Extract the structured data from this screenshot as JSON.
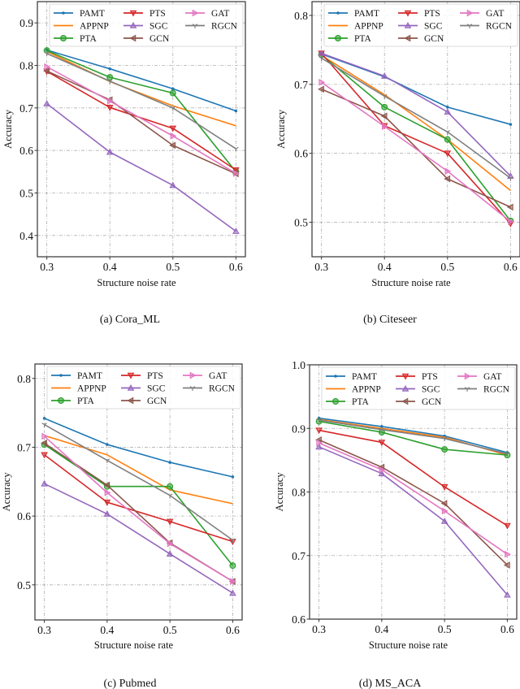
{
  "series_names": [
    "PAMT",
    "APPNP",
    "PTA",
    "PTS",
    "SGC",
    "GCN",
    "GAT",
    "RGCN"
  ],
  "series_style": {
    "PAMT": {
      "color": "#1f77b4",
      "marker": "dot"
    },
    "APPNP": {
      "color": "#ff7f0e",
      "marker": "none"
    },
    "PTA": {
      "color": "#2ca02c",
      "marker": "circle"
    },
    "PTS": {
      "color": "#d62728",
      "marker": "triangle-down"
    },
    "SGC": {
      "color": "#9467bd",
      "marker": "triangle-up"
    },
    "GCN": {
      "color": "#8c564b",
      "marker": "triangle-left"
    },
    "GAT": {
      "color": "#e377c2",
      "marker": "triangle-right"
    },
    "RGCN": {
      "color": "#7f7f7f",
      "marker": "tri-down"
    }
  },
  "chart_data": [
    {
      "type": "line",
      "caption": "(a)  Cora_ML",
      "xlabel": "Structure noise rate",
      "ylabel": "Accuracy",
      "x": [
        0.3,
        0.4,
        0.5,
        0.6
      ],
      "xticks": [
        "0.3",
        "0.4",
        "0.5",
        "0.6"
      ],
      "xlim": [
        0.285,
        0.615
      ],
      "yticks": [
        0.4,
        0.5,
        0.6,
        0.7,
        0.8,
        0.9
      ],
      "ytick_labels": [
        "0.4",
        "0.5",
        "0.6",
        "0.7",
        "0.8",
        "0.9"
      ],
      "ylim": [
        0.35,
        0.95
      ],
      "grid": true,
      "legend": "top, 3 columns",
      "series": [
        {
          "name": "PAMT",
          "values": [
            0.836,
            0.792,
            0.745,
            0.693
          ]
        },
        {
          "name": "APPNP",
          "values": [
            0.833,
            0.762,
            0.705,
            0.658
          ]
        },
        {
          "name": "PTA",
          "values": [
            0.835,
            0.772,
            0.735,
            0.55
          ]
        },
        {
          "name": "PTS",
          "values": [
            0.786,
            0.701,
            0.652,
            0.554
          ]
        },
        {
          "name": "SGC",
          "values": [
            0.71,
            0.596,
            0.518,
            0.41
          ]
        },
        {
          "name": "GCN",
          "values": [
            0.787,
            0.719,
            0.612,
            0.545
          ]
        },
        {
          "name": "GAT",
          "values": [
            0.797,
            0.716,
            0.634,
            0.546
          ]
        },
        {
          "name": "RGCN",
          "values": [
            0.828,
            0.763,
            0.7,
            0.604
          ]
        }
      ]
    },
    {
      "type": "line",
      "caption": "(b)  Citeseer",
      "xlabel": "Structure noise rate",
      "ylabel": "Accuracy",
      "x": [
        0.3,
        0.4,
        0.5,
        0.6
      ],
      "xticks": [
        "0.3",
        "0.4",
        "0.5",
        "0.6"
      ],
      "xlim": [
        0.285,
        0.615
      ],
      "yticks": [
        0.5,
        0.6,
        0.7,
        0.8
      ],
      "ytick_labels": [
        "0.5",
        "0.6",
        "0.7",
        "0.8"
      ],
      "ylim": [
        0.45,
        0.82
      ],
      "grid": true,
      "legend": "top, 3 columns",
      "series": [
        {
          "name": "PAMT",
          "values": [
            0.744,
            0.711,
            0.667,
            0.642
          ]
        },
        {
          "name": "APPNP",
          "values": [
            0.742,
            0.685,
            0.62,
            0.546
          ]
        },
        {
          "name": "PTA",
          "values": [
            0.743,
            0.667,
            0.62,
            0.502
          ]
        },
        {
          "name": "PTS",
          "values": [
            0.745,
            0.64,
            0.6,
            0.498
          ]
        },
        {
          "name": "SGC",
          "values": [
            0.745,
            0.712,
            0.66,
            0.567
          ]
        },
        {
          "name": "GCN",
          "values": [
            0.693,
            0.654,
            0.563,
            0.522
          ]
        },
        {
          "name": "GAT",
          "values": [
            0.703,
            0.639,
            0.574,
            0.501
          ]
        },
        {
          "name": "RGCN",
          "values": [
            0.738,
            0.683,
            0.631,
            0.564
          ]
        }
      ]
    },
    {
      "type": "line",
      "caption": "(c)  Pubmed",
      "xlabel": "Structure noise rate",
      "ylabel": "Accuracy",
      "x": [
        0.3,
        0.4,
        0.5,
        0.6
      ],
      "xticks": [
        "0.3",
        "0.4",
        "0.5",
        "0.6"
      ],
      "xlim": [
        0.285,
        0.615
      ],
      "yticks": [
        0.5,
        0.6,
        0.7,
        0.8
      ],
      "ytick_labels": [
        "0.5",
        "0.6",
        "0.7",
        "0.8"
      ],
      "ylim": [
        0.449,
        0.821
      ],
      "grid": true,
      "legend": "top, 3 columns",
      "series": [
        {
          "name": "PAMT",
          "values": [
            0.742,
            0.704,
            0.678,
            0.657
          ]
        },
        {
          "name": "APPNP",
          "values": [
            0.717,
            0.689,
            0.638,
            0.618
          ]
        },
        {
          "name": "PTA",
          "values": [
            0.704,
            0.643,
            0.643,
            0.528
          ]
        },
        {
          "name": "PTS",
          "values": [
            0.689,
            0.62,
            0.592,
            0.563
          ]
        },
        {
          "name": "SGC",
          "values": [
            0.647,
            0.603,
            0.545,
            0.488
          ]
        },
        {
          "name": "GCN",
          "values": [
            0.706,
            0.645,
            0.561,
            0.505
          ]
        },
        {
          "name": "GAT",
          "values": [
            0.716,
            0.634,
            0.56,
            0.505
          ]
        },
        {
          "name": "RGCN",
          "values": [
            0.733,
            0.681,
            0.63,
            0.565
          ]
        }
      ]
    },
    {
      "type": "line",
      "caption": "(d)  MS_ACA",
      "xlabel": "Structure noise rate",
      "ylabel": "Accuracy",
      "x": [
        0.3,
        0.4,
        0.5,
        0.6
      ],
      "xticks": [
        "0.3",
        "0.4",
        "0.5",
        "0.6"
      ],
      "xlim": [
        0.285,
        0.615
      ],
      "yticks": [
        0.6,
        0.7,
        0.8,
        0.9,
        1.0
      ],
      "ytick_labels": [
        "0.6",
        "0.7",
        "0.8",
        "0.9",
        "1.0"
      ],
      "ylim": [
        0.6,
        1.0
      ],
      "grid": true,
      "legend": "top, 3 columns",
      "series": [
        {
          "name": "PAMT",
          "values": [
            0.916,
            0.903,
            0.888,
            0.862
          ]
        },
        {
          "name": "APPNP",
          "values": [
            0.914,
            0.9,
            0.886,
            0.858
          ]
        },
        {
          "name": "PTA",
          "values": [
            0.911,
            0.894,
            0.867,
            0.858
          ]
        },
        {
          "name": "PTS",
          "values": [
            0.897,
            0.878,
            0.808,
            0.747
          ]
        },
        {
          "name": "SGC",
          "values": [
            0.871,
            0.829,
            0.754,
            0.638
          ]
        },
        {
          "name": "GCN",
          "values": [
            0.882,
            0.839,
            0.782,
            0.685
          ]
        },
        {
          "name": "GAT",
          "values": [
            0.877,
            0.835,
            0.77,
            0.702
          ]
        },
        {
          "name": "RGCN",
          "values": [
            0.913,
            0.898,
            0.884,
            0.86
          ]
        }
      ]
    }
  ]
}
